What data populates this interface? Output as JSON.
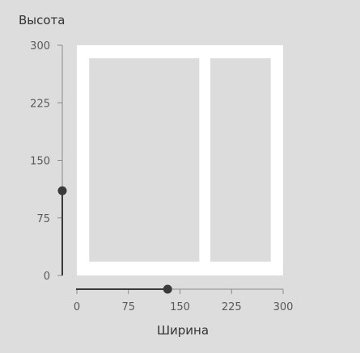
{
  "height_axis": {
    "title": "Высота",
    "min": 0,
    "max": 300,
    "ticks": [
      {
        "value": 300,
        "label": "300"
      },
      {
        "value": 225,
        "label": "225"
      },
      {
        "value": 150,
        "label": "150"
      },
      {
        "value": 75,
        "label": "75"
      },
      {
        "value": 0,
        "label": "0"
      }
    ],
    "slider_value": 138
  },
  "width_axis": {
    "title": "Ширина",
    "min": 0,
    "max": 300,
    "ticks": [
      {
        "value": 0,
        "label": "0"
      },
      {
        "value": 75,
        "label": "75"
      },
      {
        "value": 150,
        "label": "150"
      },
      {
        "value": 225,
        "label": "225"
      },
      {
        "value": 300,
        "label": "300"
      }
    ],
    "slider_value": 132
  },
  "window": {
    "outer_width": 300,
    "outer_height": 300,
    "panes": [
      {
        "x0": 18,
        "x1": 178,
        "y0": 17,
        "y1": 282
      },
      {
        "x0": 194,
        "x1": 282,
        "y0": 17,
        "y1": 282
      }
    ]
  },
  "colors": {
    "background": "#dddddd",
    "frame": "#ffffff",
    "pane": "#dcdcdc",
    "slider": "#3a3a3a"
  }
}
